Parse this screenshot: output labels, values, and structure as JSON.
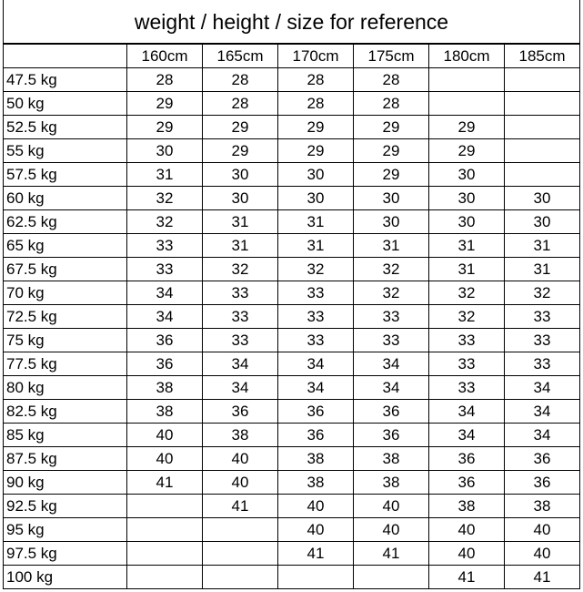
{
  "title": "weight / height / size for reference",
  "columns": [
    "160cm",
    "165cm",
    "170cm",
    "175cm",
    "180cm",
    "185cm"
  ],
  "rows": [
    {
      "weight": "47.5 kg",
      "sizes": [
        "28",
        "28",
        "28",
        "28",
        "",
        ""
      ]
    },
    {
      "weight": "50 kg",
      "sizes": [
        "29",
        "28",
        "28",
        "28",
        "",
        ""
      ]
    },
    {
      "weight": "52.5 kg",
      "sizes": [
        "29",
        "29",
        "29",
        "29",
        "29",
        ""
      ]
    },
    {
      "weight": "55 kg",
      "sizes": [
        "30",
        "29",
        "29",
        "29",
        "29",
        ""
      ]
    },
    {
      "weight": "57.5 kg",
      "sizes": [
        "31",
        "30",
        "30",
        "29",
        "30",
        ""
      ]
    },
    {
      "weight": "60 kg",
      "sizes": [
        "32",
        "30",
        "30",
        "30",
        "30",
        "30"
      ]
    },
    {
      "weight": "62.5 kg",
      "sizes": [
        "32",
        "31",
        "31",
        "30",
        "30",
        "30"
      ]
    },
    {
      "weight": "65 kg",
      "sizes": [
        "33",
        "31",
        "31",
        "31",
        "31",
        "31"
      ]
    },
    {
      "weight": "67.5 kg",
      "sizes": [
        "33",
        "32",
        "32",
        "32",
        "31",
        "31"
      ]
    },
    {
      "weight": "70 kg",
      "sizes": [
        "34",
        "33",
        "33",
        "32",
        "32",
        "32"
      ]
    },
    {
      "weight": "72.5 kg",
      "sizes": [
        "34",
        "33",
        "33",
        "33",
        "32",
        "33"
      ]
    },
    {
      "weight": "75 kg",
      "sizes": [
        "36",
        "33",
        "33",
        "33",
        "33",
        "33"
      ]
    },
    {
      "weight": "77.5 kg",
      "sizes": [
        "36",
        "34",
        "34",
        "34",
        "33",
        "33"
      ]
    },
    {
      "weight": "80 kg",
      "sizes": [
        "38",
        "34",
        "34",
        "34",
        "33",
        "34"
      ]
    },
    {
      "weight": "82.5 kg",
      "sizes": [
        "38",
        "36",
        "36",
        "36",
        "34",
        "34"
      ]
    },
    {
      "weight": "85 kg",
      "sizes": [
        "40",
        "38",
        "36",
        "36",
        "34",
        "34"
      ]
    },
    {
      "weight": "87.5 kg",
      "sizes": [
        "40",
        "40",
        "38",
        "38",
        "36",
        "36"
      ]
    },
    {
      "weight": "90 kg",
      "sizes": [
        "41",
        "40",
        "38",
        "38",
        "36",
        "36"
      ]
    },
    {
      "weight": "92.5 kg",
      "sizes": [
        "",
        "41",
        "40",
        "40",
        "38",
        "38"
      ]
    },
    {
      "weight": "95 kg",
      "sizes": [
        "",
        "",
        "40",
        "40",
        "40",
        "40"
      ]
    },
    {
      "weight": "97.5 kg",
      "sizes": [
        "",
        "",
        "41",
        "41",
        "40",
        "40"
      ]
    },
    {
      "weight": "100 kg",
      "sizes": [
        "",
        "",
        "",
        "",
        "41",
        "41"
      ]
    }
  ]
}
